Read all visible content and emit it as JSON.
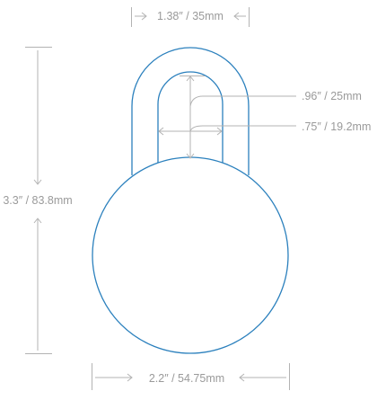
{
  "dimensions": {
    "shackle_width": "1.38″ / 35mm",
    "overall_height": "3.3″ / 83.8mm",
    "inner_height": ".96″ / 25mm",
    "inner_width": ".75″ / 19.2mm",
    "body_width": "2.2″ / 54.75mm"
  },
  "colors": {
    "outline": "#2b80bd",
    "dimension_line": "#b3b3b3",
    "dimension_text": "#9a9a9a",
    "background": "#ffffff"
  }
}
